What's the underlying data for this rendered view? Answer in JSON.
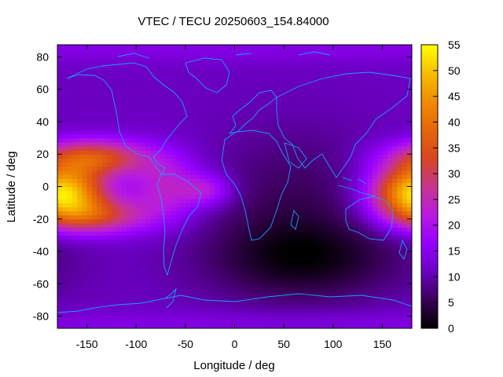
{
  "chart_data": {
    "type": "heatmap",
    "title": "VTEC / TECU 20250603_154.84000",
    "xlabel": "Longitude / deg",
    "ylabel": "Latitude / deg",
    "xlim": [
      -180,
      180
    ],
    "ylim": [
      -87.5,
      87.5
    ],
    "xticks": [
      -150,
      -100,
      -50,
      0,
      50,
      100,
      150
    ],
    "yticks": [
      -80,
      -60,
      -40,
      -20,
      0,
      20,
      40,
      60,
      80
    ],
    "colorbar": {
      "range": [
        0,
        55
      ],
      "ticks": [
        0,
        5,
        10,
        15,
        20,
        25,
        30,
        35,
        40,
        45,
        50,
        55
      ],
      "colors": [
        "#000000",
        "#3a0058",
        "#6b00c2",
        "#9600ff",
        "#b81be0",
        "#c7358e",
        "#d8461f",
        "#e6660a",
        "#f08c00",
        "#f7be00",
        "#ffff00"
      ]
    },
    "grid": false,
    "features": [
      {
        "desc": "equatorial crest",
        "lon": -172,
        "lat": -3,
        "value": 52
      },
      {
        "desc": "equatorial crest",
        "lon": 172,
        "lat": -3,
        "value": 44
      },
      {
        "desc": "northern anomaly crest",
        "lon": -150,
        "lat": 18,
        "value": 37
      },
      {
        "desc": "southern anomaly crest",
        "lon": -150,
        "lat": -18,
        "value": 33
      },
      {
        "desc": "atlantic band",
        "lon": -30,
        "lat": 0,
        "value": 26
      },
      {
        "desc": "night-side minimum",
        "lon": 60,
        "lat": -50,
        "value": 3
      },
      {
        "desc": "polar background",
        "lon": 0,
        "lat": 80,
        "value": 12
      }
    ]
  }
}
